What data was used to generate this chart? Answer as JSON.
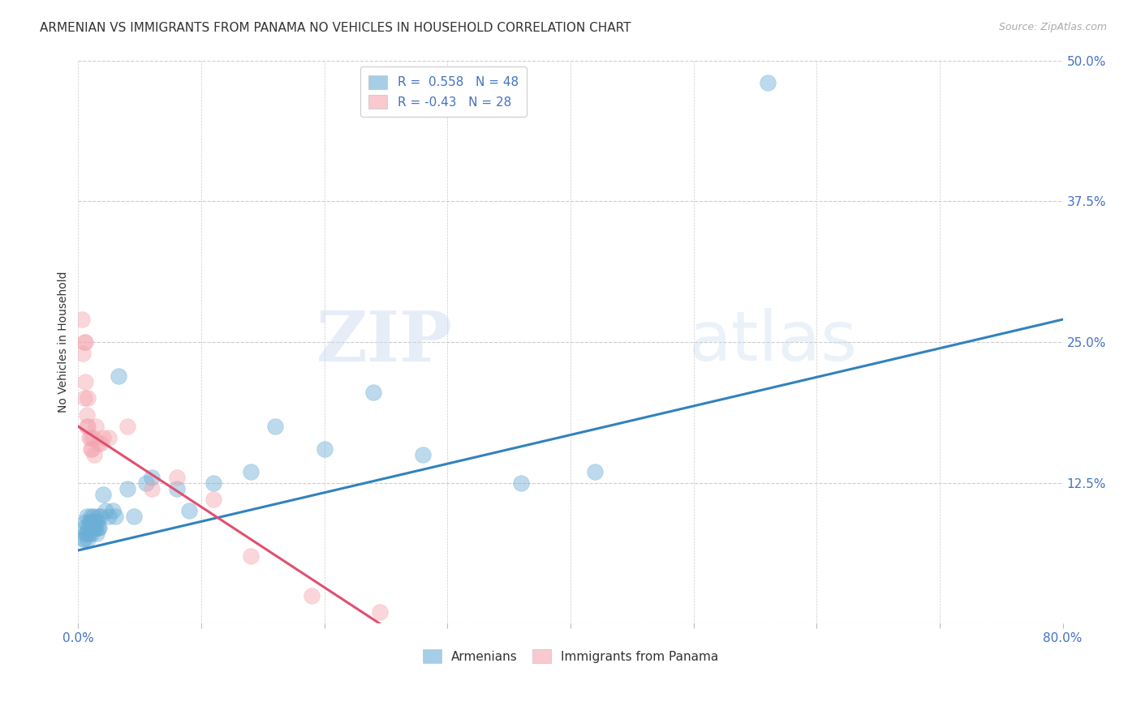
{
  "title": "ARMENIAN VS IMMIGRANTS FROM PANAMA NO VEHICLES IN HOUSEHOLD CORRELATION CHART",
  "source": "Source: ZipAtlas.com",
  "ylabel": "No Vehicles in Household",
  "yticks": [
    0.0,
    0.125,
    0.25,
    0.375,
    0.5
  ],
  "ytick_labels": [
    "",
    "12.5%",
    "25.0%",
    "37.5%",
    "50.0%"
  ],
  "xlim": [
    0.0,
    0.8
  ],
  "ylim": [
    0.0,
    0.5
  ],
  "armenian_R": 0.558,
  "armenian_N": 48,
  "panama_R": -0.43,
  "panama_N": 28,
  "armenian_color": "#6baed6",
  "panama_color": "#f4a6b0",
  "armenian_line_color": "#3182bd",
  "panama_line_color": "#e05070",
  "background_color": "#ffffff",
  "watermark_zip": "ZIP",
  "watermark_atlas": "atlas",
  "armenian_line_x0": 0.0,
  "armenian_line_y0": 0.065,
  "armenian_line_x1": 0.8,
  "armenian_line_y1": 0.27,
  "panama_line_x0": 0.0,
  "panama_line_y0": 0.175,
  "panama_line_x1": 0.245,
  "panama_line_y1": 0.0,
  "armenian_x": [
    0.004,
    0.005,
    0.005,
    0.006,
    0.006,
    0.007,
    0.007,
    0.008,
    0.008,
    0.009,
    0.009,
    0.01,
    0.01,
    0.01,
    0.011,
    0.011,
    0.012,
    0.012,
    0.013,
    0.013,
    0.014,
    0.015,
    0.015,
    0.016,
    0.016,
    0.017,
    0.018,
    0.02,
    0.022,
    0.025,
    0.028,
    0.03,
    0.033,
    0.04,
    0.045,
    0.055,
    0.06,
    0.08,
    0.09,
    0.11,
    0.14,
    0.16,
    0.2,
    0.24,
    0.28,
    0.36,
    0.42,
    0.56
  ],
  "armenian_y": [
    0.075,
    0.075,
    0.085,
    0.08,
    0.09,
    0.08,
    0.095,
    0.075,
    0.085,
    0.08,
    0.09,
    0.085,
    0.09,
    0.095,
    0.08,
    0.09,
    0.085,
    0.095,
    0.085,
    0.09,
    0.085,
    0.08,
    0.09,
    0.085,
    0.095,
    0.085,
    0.095,
    0.115,
    0.1,
    0.095,
    0.1,
    0.095,
    0.22,
    0.12,
    0.095,
    0.125,
    0.13,
    0.12,
    0.1,
    0.125,
    0.135,
    0.175,
    0.155,
    0.205,
    0.15,
    0.125,
    0.135,
    0.48
  ],
  "panama_x": [
    0.003,
    0.004,
    0.005,
    0.005,
    0.006,
    0.006,
    0.007,
    0.007,
    0.008,
    0.008,
    0.009,
    0.01,
    0.01,
    0.011,
    0.012,
    0.013,
    0.014,
    0.016,
    0.018,
    0.02,
    0.025,
    0.04,
    0.06,
    0.08,
    0.11,
    0.14,
    0.19,
    0.245
  ],
  "panama_y": [
    0.27,
    0.24,
    0.25,
    0.2,
    0.215,
    0.25,
    0.175,
    0.185,
    0.175,
    0.2,
    0.165,
    0.155,
    0.165,
    0.155,
    0.165,
    0.15,
    0.175,
    0.16,
    0.16,
    0.165,
    0.165,
    0.175,
    0.12,
    0.13,
    0.11,
    0.06,
    0.025,
    0.01
  ],
  "title_fontsize": 11,
  "axis_label_fontsize": 10,
  "tick_fontsize": 11,
  "legend_fontsize": 11,
  "source_fontsize": 9
}
